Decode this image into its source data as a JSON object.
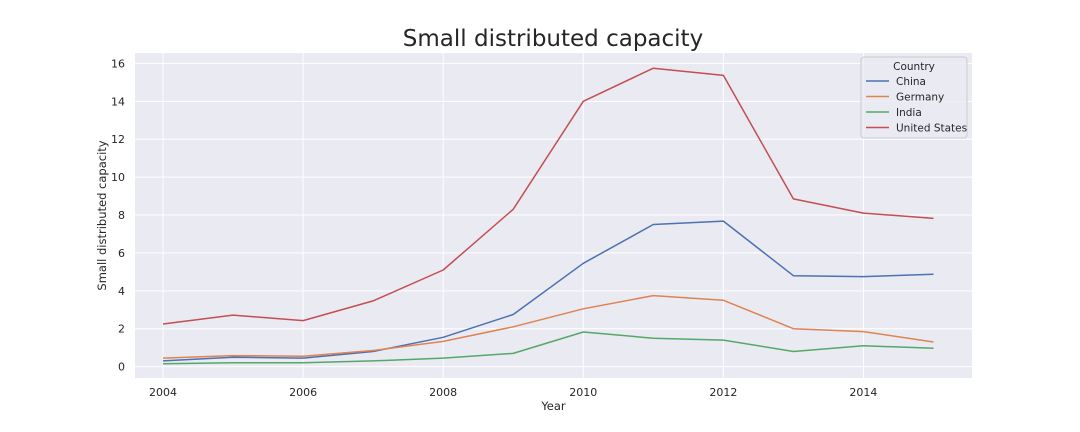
{
  "chart_data": {
    "type": "line",
    "title": "Small distributed capacity",
    "xlabel": "Year",
    "ylabel": "Small distributed capacity",
    "x": [
      2004,
      2005,
      2006,
      2007,
      2008,
      2009,
      2010,
      2011,
      2012,
      2013,
      2014,
      2015
    ],
    "xlim": [
      2003.6,
      2015.55
    ],
    "ylim": [
      -0.6,
      16.55
    ],
    "xticks": [
      2004,
      2006,
      2008,
      2010,
      2012,
      2014
    ],
    "yticks": [
      0,
      2,
      4,
      6,
      8,
      10,
      12,
      14,
      16
    ],
    "grid": true,
    "legend": {
      "title": "Country",
      "placement": "top-right"
    },
    "series": [
      {
        "name": "China",
        "color": "#4c72b0",
        "values": [
          0.3,
          0.5,
          0.45,
          0.8,
          1.55,
          2.75,
          5.45,
          7.5,
          7.68,
          4.8,
          4.75,
          4.87
        ]
      },
      {
        "name": "Germany",
        "color": "#dd8452",
        "values": [
          0.45,
          0.58,
          0.55,
          0.85,
          1.33,
          2.1,
          3.05,
          3.75,
          3.5,
          2.0,
          1.85,
          1.3
        ]
      },
      {
        "name": "India",
        "color": "#55a868",
        "values": [
          0.15,
          0.2,
          0.2,
          0.3,
          0.45,
          0.7,
          1.83,
          1.5,
          1.4,
          0.8,
          1.1,
          0.97
        ]
      },
      {
        "name": "United States",
        "color": "#c44e52",
        "values": [
          2.25,
          2.72,
          2.43,
          3.47,
          5.1,
          8.3,
          14.0,
          15.75,
          15.37,
          8.85,
          8.1,
          7.82
        ]
      }
    ]
  }
}
